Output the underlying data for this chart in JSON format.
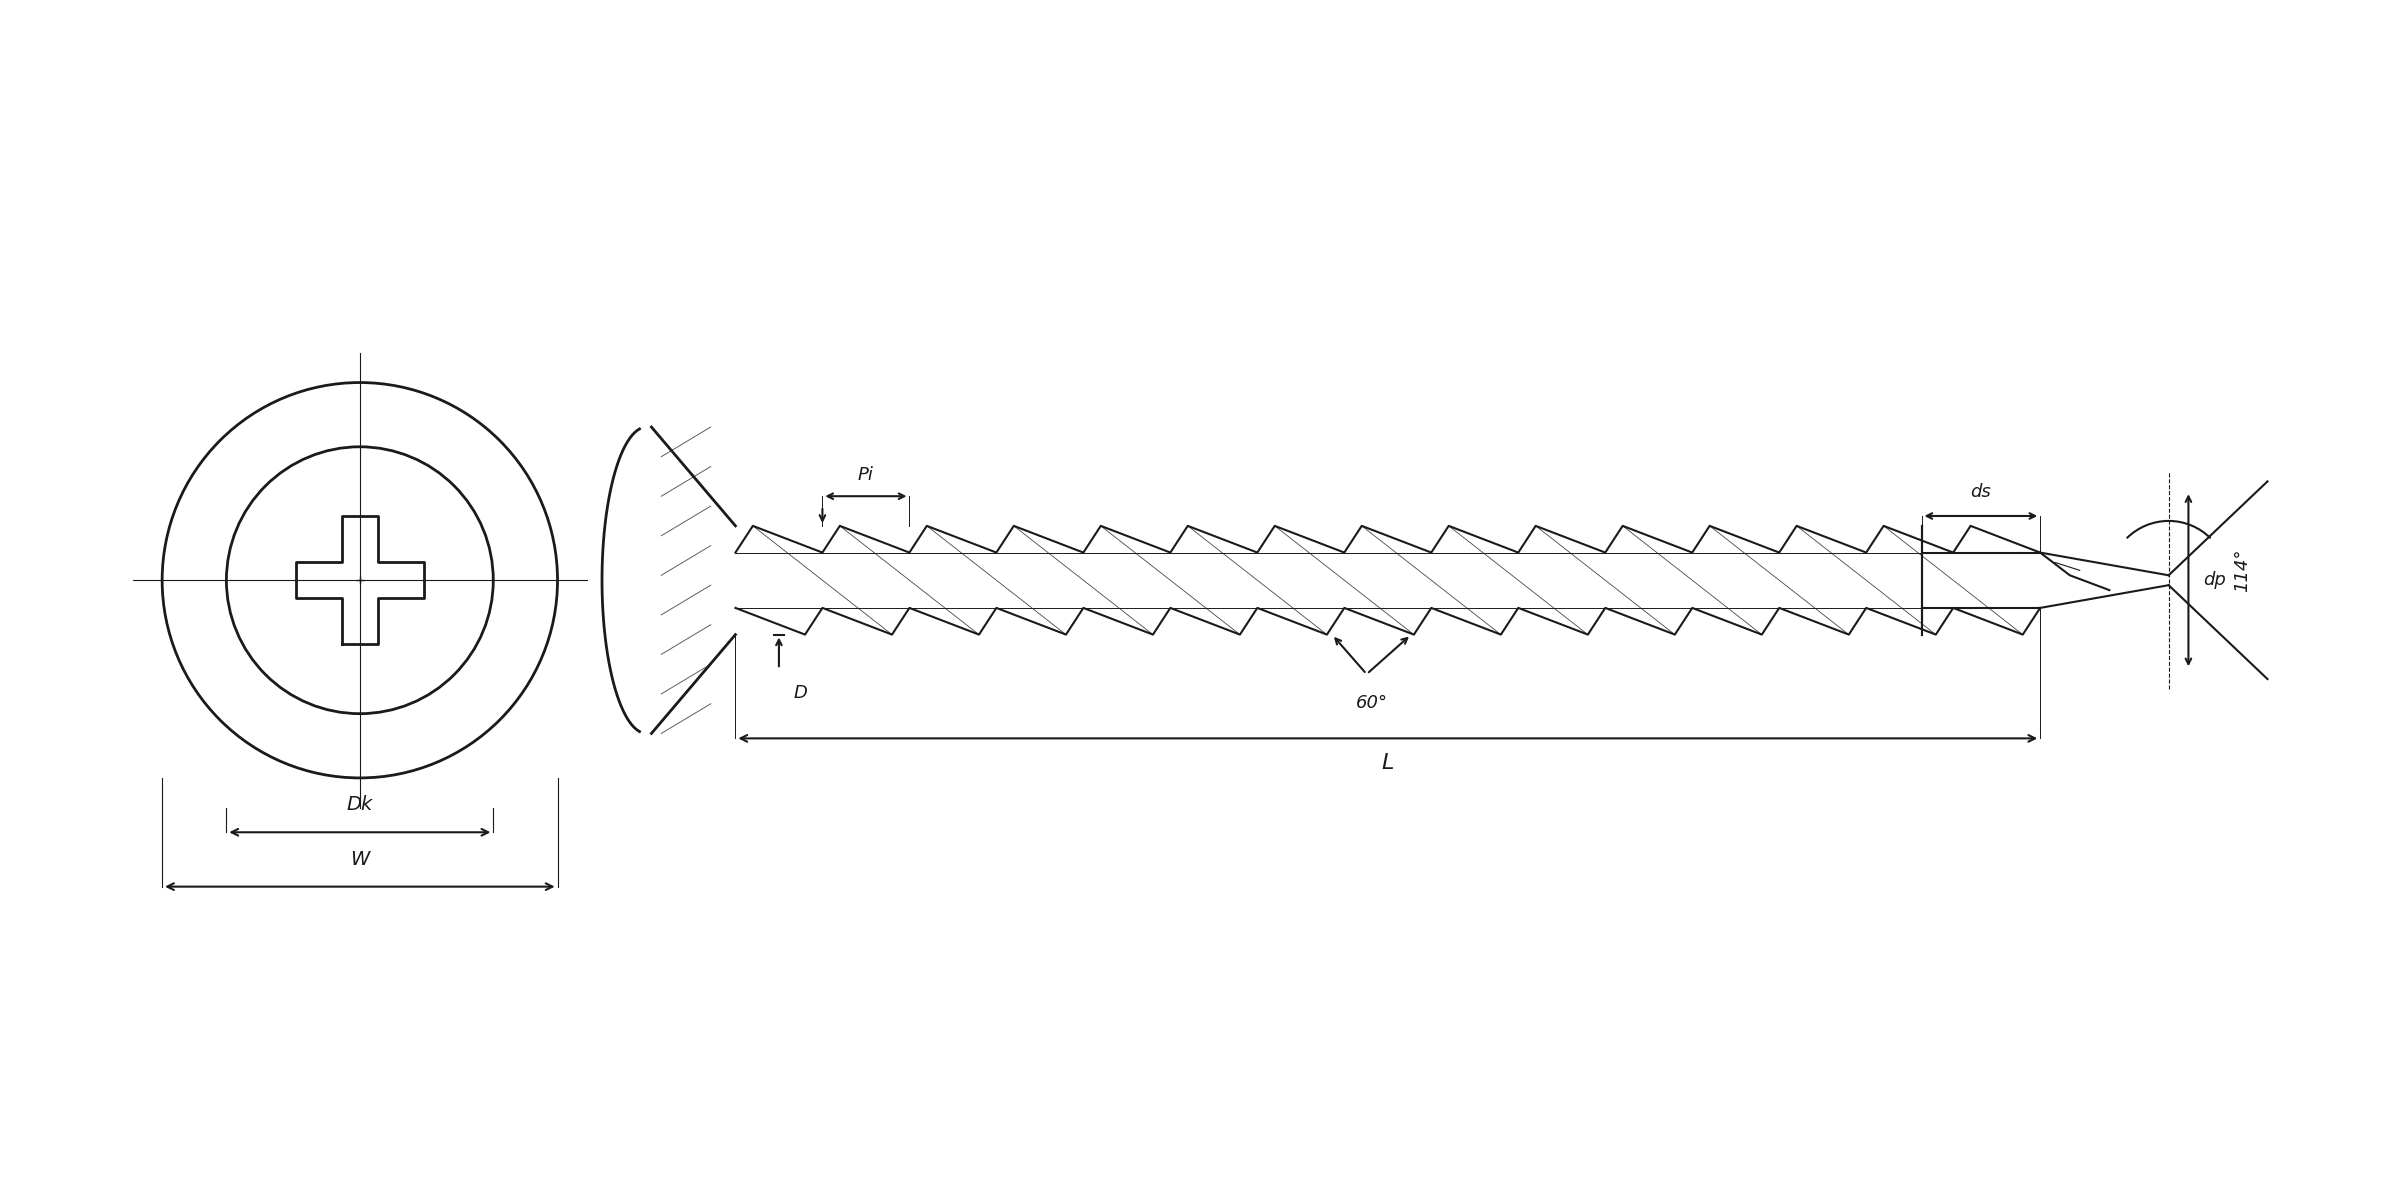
{
  "bg_color": "#ffffff",
  "line_color": "#1a1a1a",
  "fig_width": 24.0,
  "fig_height": 12.0,
  "labels": {
    "Dk": "Dk",
    "W": "W",
    "L": "L",
    "D": "D",
    "Pi": "Pi",
    "ds": "ds",
    "dp": "dp",
    "angle1": "60°",
    "angle2": "114°"
  }
}
